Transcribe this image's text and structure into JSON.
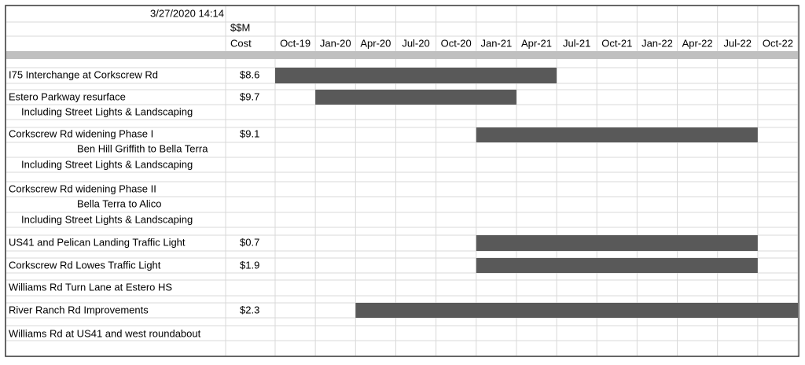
{
  "header": {
    "timestamp": "3/27/2020 14:14",
    "cost_unit": "$$M",
    "cost_label": "Cost",
    "months": [
      "Oct-19",
      "Jan-20",
      "Apr-20",
      "Jul-20",
      "Oct-20",
      "Jan-21",
      "Apr-21",
      "Jul-21",
      "Oct-21",
      "Jan-22",
      "Apr-22",
      "Jul-22",
      "Oct-22"
    ]
  },
  "rows": [
    {
      "lines": [
        "I75 Interchange at Corkscrew Rd"
      ],
      "cost": "$8.6",
      "start": "Oct-19",
      "end": "Apr-21"
    },
    {
      "lines": [
        "Estero Parkway resurface",
        "Including Street Lights & Landscaping"
      ],
      "cost": "$9.7",
      "start": "Jan-20",
      "end": "Jan-21"
    },
    {
      "lines": [
        "Corkscrew Rd widening Phase I",
        "Ben Hill Griffith to Bella Terra",
        "Including Street Lights & Landscaping"
      ],
      "cost": "$9.1",
      "start": "Jan-21",
      "end": "Jul-22"
    },
    {
      "lines": [
        "Corkscrew Rd widening Phase II",
        "Bella Terra to Alico",
        "Including Street Lights & Landscaping"
      ]
    },
    {
      "lines": [
        "US41 and Pelican Landing Traffic Light"
      ],
      "cost": "$0.7",
      "start": "Jan-21",
      "end": "Jul-22"
    },
    {
      "lines": [
        "Corkscrew Rd Lowes Traffic Light"
      ],
      "cost": "$1.9",
      "start": "Jan-21",
      "end": "Jul-22"
    },
    {
      "lines": [
        "Williams Rd Turn Lane at Estero HS"
      ]
    },
    {
      "lines": [
        "River Ranch Rd Improvements"
      ],
      "cost": "$2.3",
      "start": "Apr-20",
      "end": "Oct-22"
    },
    {
      "lines": [
        "Williams Rd at US41 and west roundabout"
      ]
    }
  ]
}
